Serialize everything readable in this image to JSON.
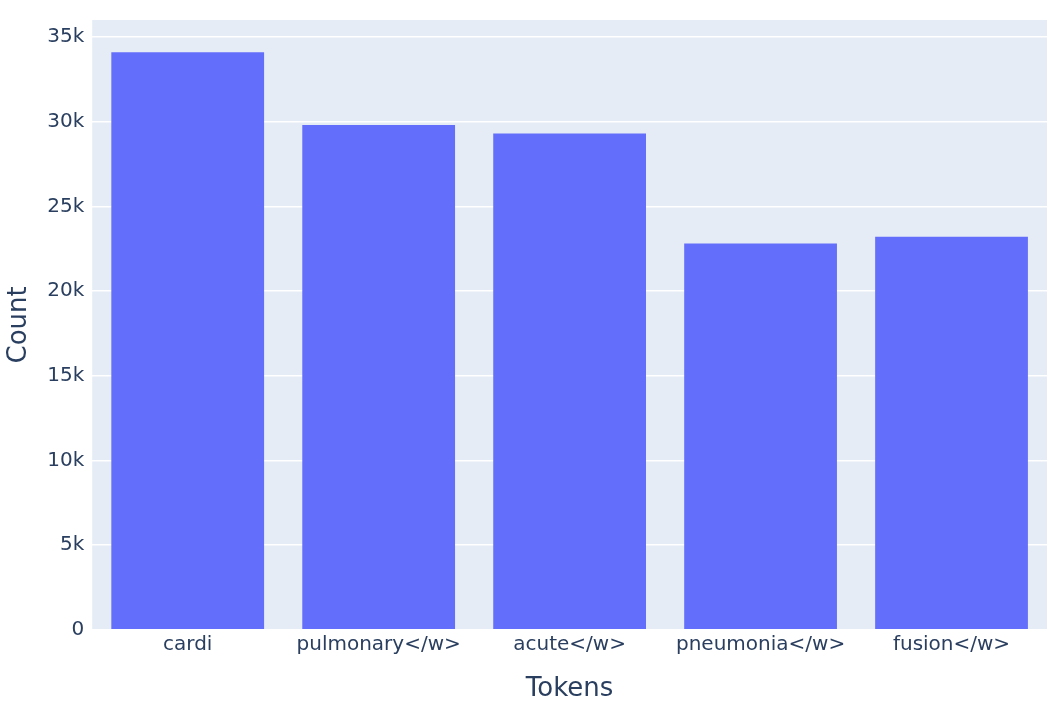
{
  "chart_data": {
    "type": "bar",
    "xlabel": "Tokens",
    "ylabel": "Count",
    "categories": [
      "cardi",
      "pulmonary</w>",
      "acute</w>",
      "pneumonia</w>",
      "fusion</w>"
    ],
    "values": [
      34100,
      29800,
      29300,
      22800,
      23200
    ],
    "color": "#636efa",
    "ylim": [
      0,
      36000
    ],
    "yticks": [
      0,
      {
        "value": 5000,
        "label": "5k"
      },
      {
        "value": 10000,
        "label": "10k"
      },
      {
        "value": 15000,
        "label": "15k"
      },
      {
        "value": 20000,
        "label": "20k"
      },
      {
        "value": 25000,
        "label": "25k"
      },
      {
        "value": 30000,
        "label": "30k"
      },
      {
        "value": 35000,
        "label": "35k"
      }
    ],
    "grid": "y"
  }
}
